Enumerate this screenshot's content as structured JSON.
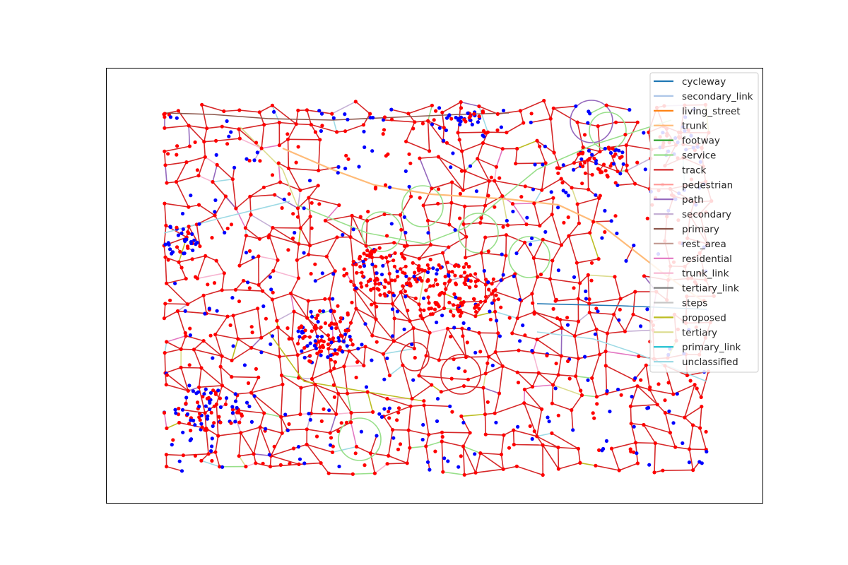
{
  "map": {
    "road_types": [
      {
        "name": "cycleway",
        "color": "#1f77b4"
      },
      {
        "name": "secondary_link",
        "color": "#aec7e8"
      },
      {
        "name": "living_street",
        "color": "#ff7f0e"
      },
      {
        "name": "trunk",
        "color": "#ffbb78"
      },
      {
        "name": "footway",
        "color": "#2ca02c"
      },
      {
        "name": "service",
        "color": "#98df8a"
      },
      {
        "name": "track",
        "color": "#d62728"
      },
      {
        "name": "pedestrian",
        "color": "#ff9896"
      },
      {
        "name": "path",
        "color": "#9467bd"
      },
      {
        "name": "secondary",
        "color": "#c5b0d5"
      },
      {
        "name": "primary",
        "color": "#8c564b"
      },
      {
        "name": "rest_area",
        "color": "#c49c94"
      },
      {
        "name": "residential",
        "color": "#e377c2"
      },
      {
        "name": "trunk_link",
        "color": "#f7b6d2"
      },
      {
        "name": "tertiary_link",
        "color": "#7f7f7f"
      },
      {
        "name": "steps",
        "color": "#c7c7c7"
      },
      {
        "name": "proposed",
        "color": "#bcbd22"
      },
      {
        "name": "tertiary",
        "color": "#dbdb8d"
      },
      {
        "name": "primary_link",
        "color": "#17becf"
      },
      {
        "name": "unclassified",
        "color": "#9edae5"
      }
    ],
    "node_colors": {
      "endpoint": "#0000ff",
      "intersection": "#ff0000"
    },
    "legend_position": "top-right"
  }
}
